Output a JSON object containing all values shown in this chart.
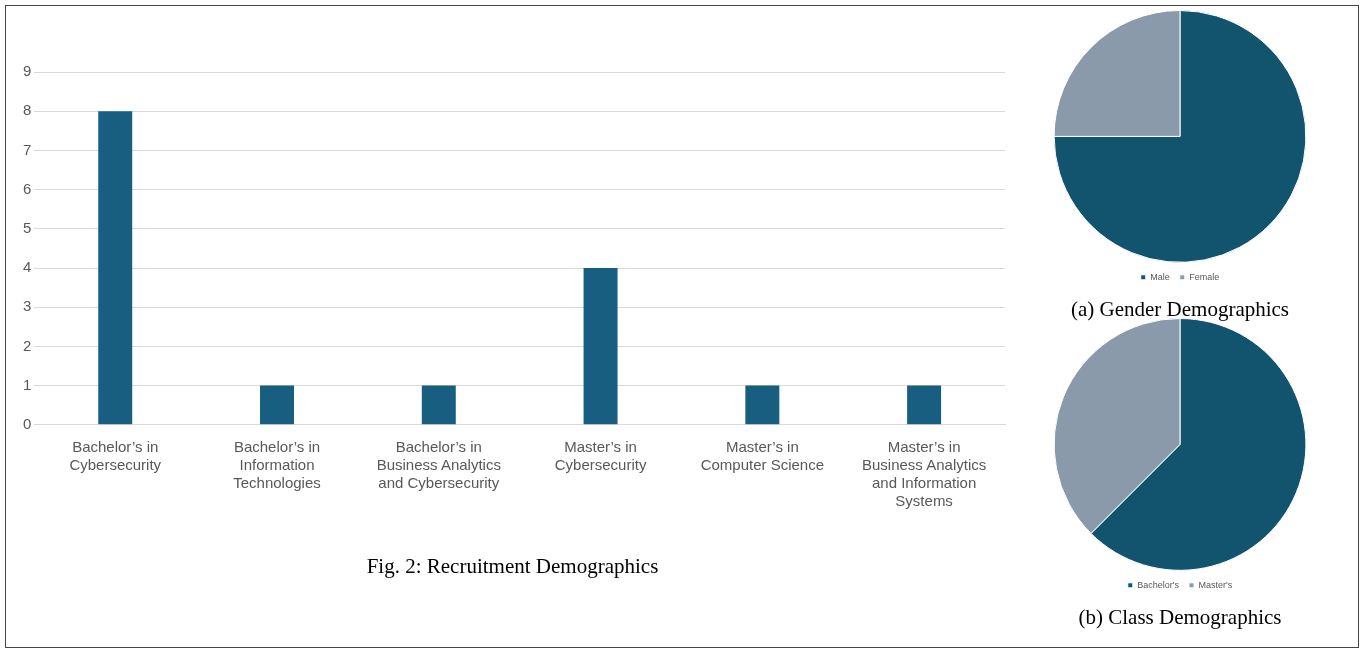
{
  "chart_data": [
    {
      "type": "bar",
      "title": "Fig. 2: Recruitment Demographics",
      "categories": [
        "Bachelor’s in Cybersecurity",
        "Bachelor’s in Information Technologies",
        "Bachelor’s in Business Analytics and Cybersecurity",
        "Master’s in Cybersecurity",
        "Master’s in Computer Science",
        "Master’s in Business Analytics and Information Systems"
      ],
      "values": [
        8,
        1,
        1,
        4,
        1,
        1
      ],
      "color": "#175e80",
      "ylim": [
        0,
        9
      ],
      "yticks": [
        0,
        1,
        2,
        3,
        4,
        5,
        6,
        7,
        8,
        9
      ],
      "grid": "y",
      "legend": false
    },
    {
      "type": "pie",
      "title": "(a) Gender Demographics",
      "categories": [
        "Male",
        "Female"
      ],
      "values": [
        75,
        25
      ],
      "colors": [
        "#12536e",
        "#8a9aaa"
      ],
      "legend": "bottom"
    },
    {
      "type": "pie",
      "title": "(b) Class Demographics",
      "categories": [
        "Bachelor's",
        "Master's"
      ],
      "values": [
        62.5,
        37.5
      ],
      "colors": [
        "#12536e",
        "#8a9aaa"
      ],
      "legend": "bottom"
    }
  ]
}
